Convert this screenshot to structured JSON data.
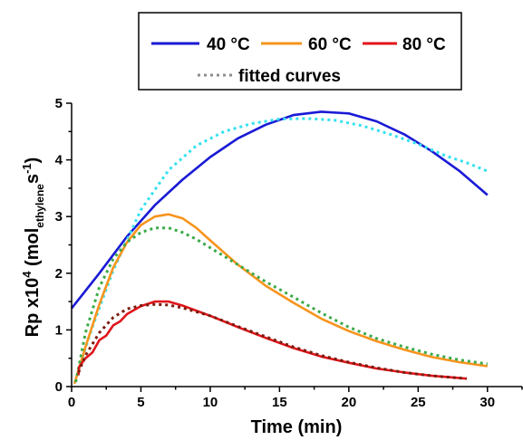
{
  "chart_data": {
    "type": "line",
    "xlabel": "Time (min)",
    "ylabel": {
      "base": "Rp x10",
      "exp": "4",
      "paren_open": " (mol",
      "sub": "ethylene",
      "mid": "s",
      "exp2": "-1",
      "paren_close": ")"
    },
    "xlim": [
      0,
      32.5
    ],
    "ylim": [
      0,
      5
    ],
    "xticks": [
      "0",
      "5",
      "10",
      "15",
      "20",
      "25",
      "30"
    ],
    "yticks": [
      "0",
      "1",
      "2",
      "3",
      "4",
      "5"
    ],
    "legend": {
      "position": "top-center",
      "entries": [
        {
          "label": "40 °C",
          "color": "#1a1ad6",
          "style": "solid"
        },
        {
          "label": "60 °C",
          "color": "#f7941d",
          "style": "solid"
        },
        {
          "label": "80 °C",
          "color": "#e0151b",
          "style": "solid"
        },
        {
          "label": "fitted curves",
          "color": "#8c8c8c",
          "style": "dotted"
        }
      ]
    },
    "series": [
      {
        "key": "40C",
        "color": "#1a1ad6",
        "style": "solid",
        "x": [
          0,
          2,
          4,
          6,
          8,
          10,
          12,
          14,
          16,
          18,
          20,
          22,
          24,
          26,
          28,
          30
        ],
        "y": [
          1.38,
          2.0,
          2.65,
          3.2,
          3.65,
          4.05,
          4.38,
          4.62,
          4.79,
          4.85,
          4.82,
          4.68,
          4.45,
          4.15,
          3.8,
          3.38
        ]
      },
      {
        "key": "40C-fit",
        "color": "#33e1ee",
        "style": "dotted",
        "x": [
          0.5,
          1.5,
          3,
          5,
          7,
          9,
          11,
          13,
          15,
          17,
          19,
          21,
          23,
          25,
          27,
          28.5,
          30
        ],
        "y": [
          0.3,
          1.05,
          2.05,
          3.12,
          3.82,
          4.25,
          4.5,
          4.64,
          4.72,
          4.73,
          4.7,
          4.6,
          4.45,
          4.28,
          4.07,
          3.95,
          3.8
        ]
      },
      {
        "key": "60C",
        "color": "#f7941d",
        "style": "solid",
        "x": [
          0.2,
          1,
          2,
          3,
          4,
          5,
          6,
          7,
          8,
          9,
          10,
          12,
          14,
          16,
          18,
          20,
          22,
          24,
          26,
          28,
          30
        ],
        "y": [
          0.05,
          0.7,
          1.45,
          2.1,
          2.55,
          2.85,
          3.0,
          3.04,
          2.97,
          2.8,
          2.58,
          2.15,
          1.78,
          1.48,
          1.2,
          0.98,
          0.8,
          0.65,
          0.52,
          0.43,
          0.36
        ]
      },
      {
        "key": "60C-fit",
        "color": "#3aaa48",
        "style": "dotted",
        "x": [
          0.3,
          1,
          2,
          3,
          4,
          5,
          6,
          7,
          8,
          9,
          10,
          12,
          14,
          16,
          18,
          20,
          22,
          24,
          26,
          28,
          30
        ],
        "y": [
          0.08,
          0.95,
          1.75,
          2.25,
          2.55,
          2.72,
          2.8,
          2.8,
          2.72,
          2.6,
          2.45,
          2.15,
          1.85,
          1.58,
          1.3,
          1.05,
          0.85,
          0.7,
          0.57,
          0.47,
          0.4
        ]
      },
      {
        "key": "80C",
        "color": "#e0151b",
        "style": "solid",
        "x": [
          0.5,
          0.55,
          1,
          1.5,
          2,
          2.5,
          3,
          3.5,
          4,
          5,
          6,
          7,
          8,
          10,
          12,
          14,
          16,
          18,
          20,
          22,
          24,
          26,
          28.5
        ],
        "y": [
          0.2,
          0.35,
          0.5,
          0.6,
          0.82,
          0.9,
          1.08,
          1.15,
          1.28,
          1.42,
          1.5,
          1.5,
          1.43,
          1.25,
          1.05,
          0.86,
          0.68,
          0.53,
          0.42,
          0.32,
          0.25,
          0.19,
          0.14
        ]
      },
      {
        "key": "80C-fit",
        "color": "#7a1c0e",
        "style": "dotted",
        "x": [
          0.5,
          1,
          2,
          3,
          4,
          5,
          6,
          7,
          8,
          10,
          12,
          14,
          16,
          18,
          20,
          22,
          24,
          26,
          28.5
        ],
        "y": [
          0.25,
          0.55,
          0.95,
          1.22,
          1.37,
          1.43,
          1.45,
          1.44,
          1.39,
          1.25,
          1.06,
          0.88,
          0.7,
          0.55,
          0.43,
          0.33,
          0.25,
          0.19,
          0.14
        ]
      }
    ]
  }
}
